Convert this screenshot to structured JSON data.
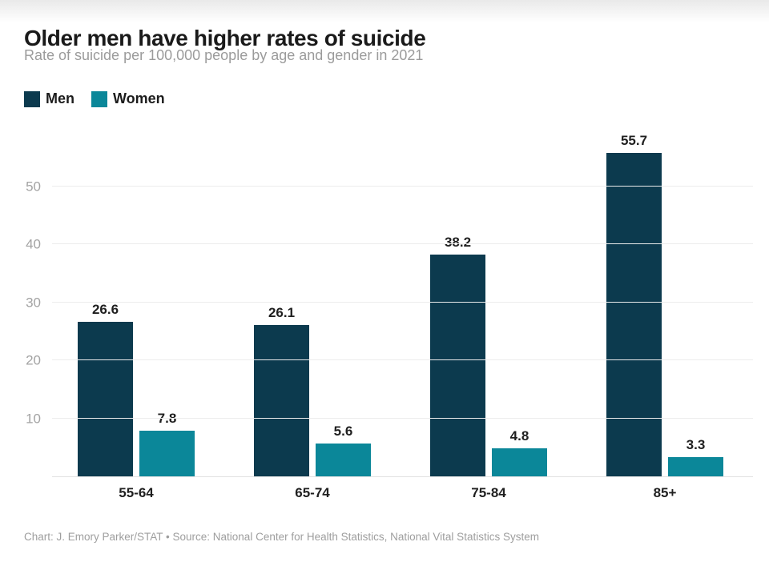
{
  "header": {
    "title": "Older men have higher rates of suicide",
    "subtitle": "Rate of suicide per 100,000 people by age and gender in 2021"
  },
  "footer": {
    "credit": "Chart: J. Emory Parker/STAT • Source: National Center for Health Statistics, National Vital Statistics System"
  },
  "colors": {
    "men": "#0c3a4e",
    "women": "#0b8799",
    "gridline": "#ececec",
    "axis_tick_label": "#a3a3a3",
    "dark_text": "#1f1f1f",
    "subtitle_text": "#9b9b9b"
  },
  "chart_data": {
    "type": "bar",
    "title": "Older men have higher rates of suicide",
    "subtitle": "Rate of suicide per 100,000 people by age and gender in 2021",
    "categories": [
      "55-64",
      "65-74",
      "75-84",
      "85+"
    ],
    "series": [
      {
        "name": "Men",
        "color": "#0c3a4e",
        "values": [
          26.6,
          26.1,
          38.2,
          55.7
        ]
      },
      {
        "name": "Women",
        "color": "#0b8799",
        "values": [
          7.8,
          5.6,
          4.8,
          3.3
        ]
      }
    ],
    "xlabel": "",
    "ylabel": "",
    "ylim": [
      0,
      60
    ],
    "yticks": [
      10,
      20,
      30,
      40,
      50
    ],
    "grid": true,
    "legend_position": "top-left",
    "value_labels": true
  }
}
